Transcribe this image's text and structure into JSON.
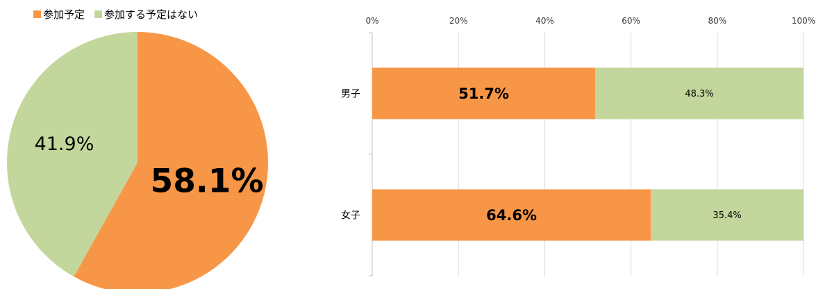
{
  "legend": {
    "items": [
      {
        "label": "参加予定",
        "color": "#F79646"
      },
      {
        "label": "参加する予定はない",
        "color": "#C3D69B"
      }
    ]
  },
  "chart_data": [
    {
      "type": "pie",
      "title": "",
      "categories": [
        "参加予定",
        "参加する予定はない"
      ],
      "values": [
        58.1,
        41.9
      ],
      "labels": [
        "58.1%",
        "41.9%"
      ],
      "colors": [
        "#F79646",
        "#C3D69B"
      ]
    },
    {
      "type": "bar",
      "orientation": "horizontal",
      "stacked": true,
      "title": "",
      "categories": [
        "男子",
        "女子"
      ],
      "series": [
        {
          "name": "参加予定",
          "values": [
            51.7,
            64.6
          ],
          "labels": [
            "51.7%",
            "64.6%"
          ],
          "color": "#F79646"
        },
        {
          "name": "参加する予定はない",
          "values": [
            48.3,
            35.4
          ],
          "labels": [
            "48.3%",
            "35.4%"
          ],
          "color": "#C3D69B"
        }
      ],
      "xlim": [
        0,
        100
      ],
      "xticks": [
        "0%",
        "20%",
        "40%",
        "60%",
        "80%",
        "100%"
      ],
      "grid": true
    }
  ]
}
